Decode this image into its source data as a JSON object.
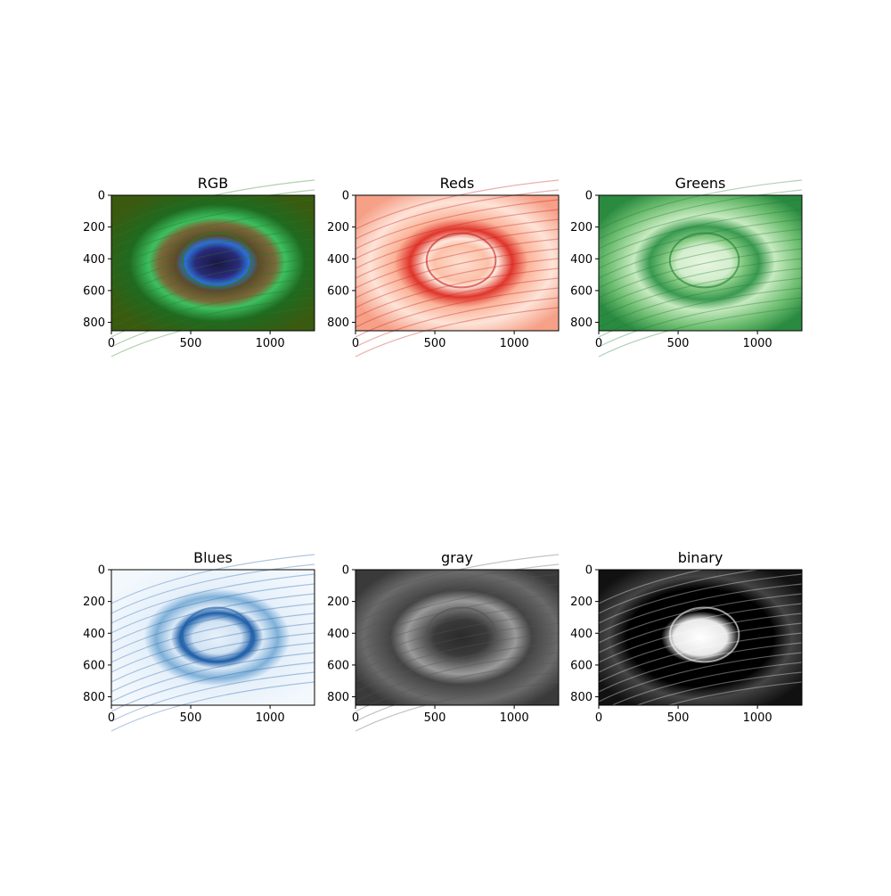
{
  "chart_data": {
    "type": "image-grid",
    "panels": [
      {
        "title": "RGB",
        "colormap": "rgb",
        "accent": "#2a7a1e"
      },
      {
        "title": "Reds",
        "colormap": "Reds",
        "accent": "#c81c1c"
      },
      {
        "title": "Greens",
        "colormap": "Greens",
        "accent": "#1e7a35"
      },
      {
        "title": "Blues",
        "colormap": "Blues",
        "accent": "#1f5fa8"
      },
      {
        "title": "gray",
        "colormap": "gray",
        "accent": "#555555"
      },
      {
        "title": "binary",
        "colormap": "binary",
        "accent": "#000000"
      }
    ],
    "x_ticks": [
      0,
      500,
      1000
    ],
    "y_ticks": [
      0,
      200,
      400,
      600,
      800
    ],
    "xlim": [
      0,
      1280
    ],
    "ylim": [
      853,
      0
    ],
    "grid": false
  }
}
